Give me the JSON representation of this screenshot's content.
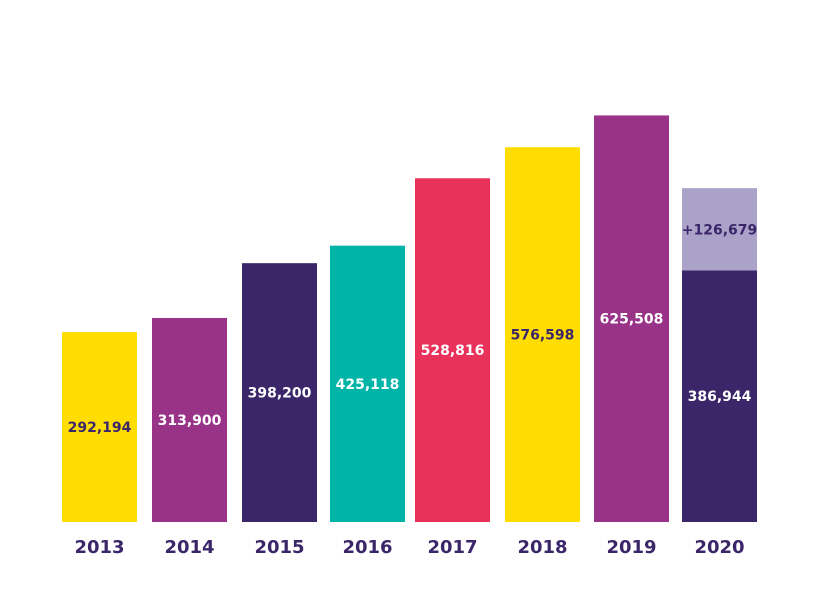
{
  "chart_data": {
    "type": "bar",
    "stacked": true,
    "title": "",
    "xlabel": "",
    "ylabel": "",
    "ylim": [
      0,
      640000
    ],
    "grid": false,
    "legend": "none",
    "categories": [
      "2013",
      "2014",
      "2015",
      "2016",
      "2017",
      "2018",
      "2019",
      "2020"
    ],
    "series": [
      {
        "values": [
          292194,
          313900,
          398200,
          425118,
          528816,
          576598,
          625508,
          386944
        ],
        "labels": [
          "292,194",
          "313,900",
          "398,200",
          "425,118",
          "528,816",
          "576,598",
          "625,508",
          "386,944"
        ],
        "colors": [
          "#ffdd00",
          "#993388",
          "#3a2669",
          "#00b5a8",
          "#e8325a",
          "#ffdd00",
          "#993388",
          "#3a2669"
        ],
        "label_colors": [
          "#3a2669",
          "#ffffff",
          "#ffffff",
          "#ffffff",
          "#ffffff",
          "#3a2669",
          "#ffffff",
          "#ffffff"
        ]
      },
      {
        "values": [
          null,
          null,
          null,
          null,
          null,
          null,
          null,
          126679
        ],
        "labels": [
          "",
          "",
          "",
          "",
          "",
          "",
          "",
          "+126,679"
        ],
        "colors": [
          "",
          "",
          "",
          "",
          "",
          "",
          "",
          "#aaa2c9"
        ],
        "label_colors": [
          "",
          "",
          "",
          "",
          "",
          "",
          "",
          "#3a2669"
        ]
      }
    ],
    "axis_label_color": "#3a2669"
  }
}
